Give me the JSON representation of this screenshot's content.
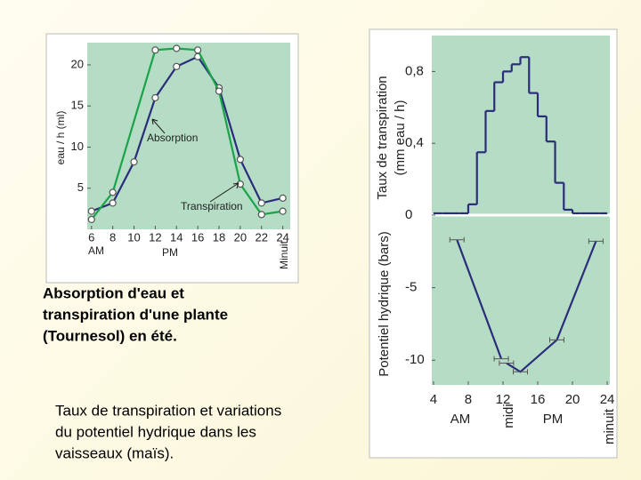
{
  "chart_data": [
    {
      "type": "line",
      "ylabel": "eau / h (ml)",
      "annotations": [
        "Absorption",
        "Transpiration",
        "AM",
        "PM",
        "Minuit"
      ],
      "xlim": [
        5.6,
        24.7
      ],
      "ylim": [
        0,
        22.7
      ],
      "xticks": [
        6,
        8,
        10,
        12,
        14,
        16,
        18,
        20,
        22,
        24
      ],
      "yticks": [
        5,
        10,
        15,
        20
      ],
      "series": [
        {
          "name": "Absorption",
          "color": "#2b2d7a",
          "x": [
            6,
            8,
            10,
            12,
            14,
            16,
            18,
            20,
            22,
            24
          ],
          "values": [
            2.2,
            3.2,
            8.2,
            16,
            19.8,
            21,
            17.2,
            8.5,
            3.2,
            3.8
          ]
        },
        {
          "name": "Transpiration",
          "color": "#1aa34a",
          "x": [
            6,
            8,
            12,
            14,
            16,
            18,
            20,
            22,
            24
          ],
          "values": [
            1.2,
            4.5,
            21.8,
            22,
            21.8,
            16.8,
            5.5,
            1.8,
            2.2
          ]
        }
      ]
    },
    {
      "type": "histogram",
      "ylabel": [
        "Taux de transpiration",
        "(mm eau / h)"
      ],
      "color": "#2b2d7a",
      "xlim": [
        3.8,
        24.3
      ],
      "ylim": [
        0,
        1
      ],
      "yticks": [
        {
          "value": 0.8,
          "label": "0,8"
        },
        {
          "value": 0.4,
          "label": "0,4"
        },
        0
      ],
      "bins": [
        4,
        5,
        6,
        7,
        8,
        9,
        10,
        11,
        12,
        13,
        14,
        15,
        16,
        17,
        18,
        19,
        20,
        21,
        22,
        23,
        24
      ],
      "values": [
        0.01,
        0.01,
        0.01,
        0.01,
        0.06,
        0.35,
        0.58,
        0.74,
        0.8,
        0.84,
        0.88,
        0.68,
        0.55,
        0.41,
        0.18,
        0.03,
        0.01,
        0.01,
        0.01,
        0.01
      ]
    },
    {
      "type": "line",
      "ylabel": "Potentiel hydrique (bars)",
      "annotations": [
        "AM",
        "midi",
        "PM",
        "minuit"
      ],
      "color": "#2b2d7a",
      "xlim": [
        3.8,
        24.3
      ],
      "ylim": [
        -11.7,
        0
      ],
      "xticks": [
        4,
        8,
        12,
        16,
        20,
        24
      ],
      "yticks": [
        -5,
        -10
      ],
      "series": [
        {
          "color": "#2b2d7a",
          "x": [
            6.7,
            11.8,
            null,
            12.4,
            14,
            18.2,
            22.7
          ],
          "values": [
            -1.7,
            -9.9,
            null,
            -10.2,
            -10.8,
            -8.6,
            -1.8
          ]
        }
      ]
    }
  ],
  "captions": [
    [
      "Absorption d'eau et",
      "transpiration d'une plante",
      "(Tournesol) en été."
    ],
    [
      "Taux de transpiration et variations",
      "du potentiel hydrique dans les",
      "vaisseaux (maïs)."
    ]
  ]
}
